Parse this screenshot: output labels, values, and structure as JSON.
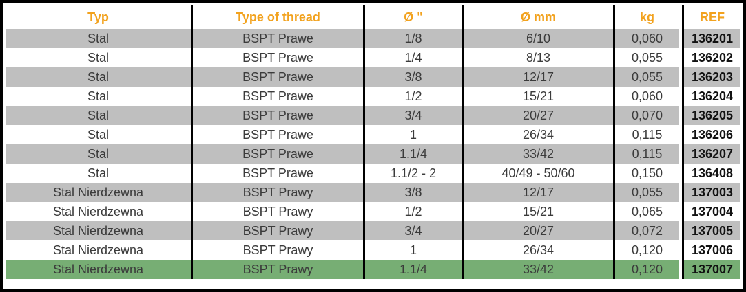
{
  "table": {
    "columns": [
      {
        "label": "Typ"
      },
      {
        "label": "Type of thread"
      },
      {
        "label": "Ø \""
      },
      {
        "label": "Ø mm"
      },
      {
        "label": "kg"
      },
      {
        "label": "REF"
      }
    ],
    "rows": [
      {
        "typ": "Stal",
        "thread": "BSPT Prawe",
        "inch": "1/8",
        "mm": "6/10",
        "kg": "0,060",
        "ref": "136201",
        "highlighted": false
      },
      {
        "typ": "Stal",
        "thread": "BSPT Prawe",
        "inch": "1/4",
        "mm": "8/13",
        "kg": "0,055",
        "ref": "136202",
        "highlighted": false
      },
      {
        "typ": "Stal",
        "thread": "BSPT Prawe",
        "inch": "3/8",
        "mm": "12/17",
        "kg": "0,055",
        "ref": "136203",
        "highlighted": false
      },
      {
        "typ": "Stal",
        "thread": "BSPT Prawe",
        "inch": "1/2",
        "mm": "15/21",
        "kg": "0,060",
        "ref": "136204",
        "highlighted": false
      },
      {
        "typ": "Stal",
        "thread": "BSPT Prawe",
        "inch": "3/4",
        "mm": "20/27",
        "kg": "0,070",
        "ref": "136205",
        "highlighted": false
      },
      {
        "typ": "Stal",
        "thread": "BSPT Prawe",
        "inch": "1",
        "mm": "26/34",
        "kg": "0,115",
        "ref": "136206",
        "highlighted": false
      },
      {
        "typ": "Stal",
        "thread": "BSPT Prawe",
        "inch": "1.1/4",
        "mm": "33/42",
        "kg": "0,115",
        "ref": "136207",
        "highlighted": false
      },
      {
        "typ": "Stal",
        "thread": "BSPT Prawe",
        "inch": "1.1/2 - 2",
        "mm": "40/49 - 50/60",
        "kg": "0,150",
        "ref": "136408",
        "highlighted": false
      },
      {
        "typ": "Stal Nierdzewna",
        "thread": "BSPT Prawy",
        "inch": "3/8",
        "mm": "12/17",
        "kg": "0,055",
        "ref": "137003",
        "highlighted": false
      },
      {
        "typ": "Stal Nierdzewna",
        "thread": "BSPT Prawy",
        "inch": "1/2",
        "mm": "15/21",
        "kg": "0,065",
        "ref": "137004",
        "highlighted": false
      },
      {
        "typ": "Stal Nierdzewna",
        "thread": "BSPT Prawy",
        "inch": "3/4",
        "mm": "20/27",
        "kg": "0,072",
        "ref": "137005",
        "highlighted": false
      },
      {
        "typ": "Stal Nierdzewna",
        "thread": "BSPT Prawy",
        "inch": "1",
        "mm": "26/34",
        "kg": "0,120",
        "ref": "137006",
        "highlighted": false
      },
      {
        "typ": "Stal Nierdzewna",
        "thread": "BSPT Prawy",
        "inch": "1.1/4",
        "mm": "33/42",
        "kg": "0,120",
        "ref": "137007",
        "highlighted": true
      }
    ],
    "colors": {
      "header_text": "#F2A21E",
      "stripe_row": "#BFBFBF",
      "highlight_row": "#77AE74",
      "border": "#000000"
    }
  }
}
